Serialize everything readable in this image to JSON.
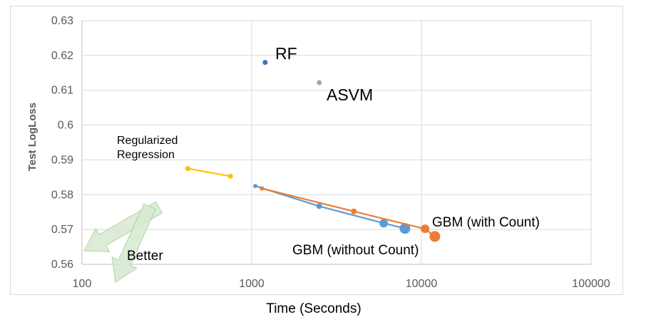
{
  "chart_data": {
    "type": "scatter",
    "xlabel": "Time (Seconds)",
    "ylabel": "Test LogLoss",
    "x_scale": "log",
    "xlim": [
      100,
      100000
    ],
    "ylim": [
      0.56,
      0.63
    ],
    "x_ticks": [
      "100",
      "1000",
      "10000",
      "100000"
    ],
    "y_ticks": [
      "0.56",
      "0.57",
      "0.58",
      "0.59",
      "0.6",
      "0.61",
      "0.62",
      "0.63"
    ],
    "grid": true,
    "annotation": "Better",
    "series": [
      {
        "name": "RF",
        "color": "#4472c4",
        "points": [
          {
            "x": 1200,
            "y": 0.618
          }
        ]
      },
      {
        "name": "ASVM",
        "color": "#a5a5a5",
        "points": [
          {
            "x": 2500,
            "y": 0.6122
          }
        ]
      },
      {
        "name": "Regularized Regression",
        "color": "#ffc000",
        "connected": true,
        "points": [
          {
            "x": 420,
            "y": 0.5875
          },
          {
            "x": 750,
            "y": 0.5853
          }
        ]
      },
      {
        "name": "GBM (without Count)",
        "color": "#5b9bd5",
        "connected": true,
        "points": [
          {
            "x": 1050,
            "y": 0.5825
          },
          {
            "x": 2500,
            "y": 0.5767
          },
          {
            "x": 6000,
            "y": 0.5718
          },
          {
            "x": 8000,
            "y": 0.5703
          }
        ]
      },
      {
        "name": "GBM (with Count)",
        "color": "#ed7d31",
        "connected": true,
        "points": [
          {
            "x": 1150,
            "y": 0.5818
          },
          {
            "x": 4000,
            "y": 0.5752
          },
          {
            "x": 10500,
            "y": 0.5702
          },
          {
            "x": 12000,
            "y": 0.568
          }
        ]
      }
    ]
  }
}
